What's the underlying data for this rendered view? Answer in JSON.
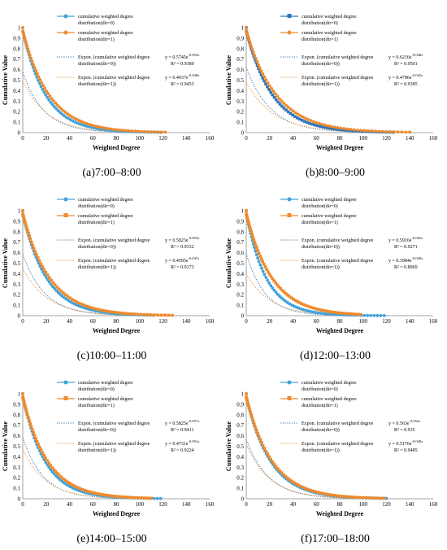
{
  "chart_data": [
    {
      "type": "line",
      "caption": "(a)7:00–8:00",
      "xlabel": "Weighted Degree",
      "ylabel": "Cumulative Value",
      "xlim": [
        0,
        160
      ],
      "ylim": [
        0,
        1
      ],
      "xticks": [
        "0",
        "20",
        "40",
        "60",
        "80",
        "100",
        "120",
        "140",
        "160"
      ],
      "yticks": [
        "0",
        "0.1",
        "0.2",
        "0.3",
        "0.4",
        "0.5",
        "0.6",
        "0.7",
        "0.8",
        "0.9",
        "1"
      ],
      "series": [
        {
          "name": "cumulative weighted degree distribution(dir=0)",
          "marker": "circle",
          "color": "#41A3D9",
          "k": 0.055,
          "xmax": 118
        },
        {
          "name": "cumulative weighted degree distribution(dir=1)",
          "marker": "circle",
          "color": "#F08A2C",
          "k": 0.048,
          "xmax": 122
        }
      ],
      "fits": [
        {
          "name": "Expon. (cumulative weighted degree distribution(dir=0))",
          "a": "0.5745",
          "exp": "-0.055x",
          "r2": "R² = 0.9389",
          "color": "#2E75B6",
          "eq_prefix": "y = ",
          "eq_base": "e"
        },
        {
          "name": "Expon. (cumulative weighted degree distribution(dir=1))",
          "a": "0.4937",
          "exp": "-0.048x",
          "r2": "R² = 0.9453",
          "color": "#F08A2C",
          "eq_prefix": "y = ",
          "eq_base": "e"
        }
      ]
    },
    {
      "type": "line",
      "caption": "(b)8:00–9:00",
      "xlabel": "Weighted Degree",
      "ylabel": "Cumulative Value",
      "xlim": [
        0,
        160
      ],
      "ylim": [
        0,
        1
      ],
      "xticks": [
        "0",
        "20",
        "40",
        "60",
        "80",
        "100",
        "120",
        "140",
        "160"
      ],
      "yticks": [
        "0",
        "0.1",
        "0.2",
        "0.3",
        "0.4",
        "0.5",
        "0.6",
        "0.7",
        "0.8",
        "0.9",
        "1"
      ],
      "series": [
        {
          "name": "cumulative weighted degree distribution(dir=0)",
          "marker": "square",
          "color": "#2E75B6",
          "k": 0.048,
          "xmax": 126
        },
        {
          "name": "cumulative weighted degree distribution(dir=1)",
          "marker": "circle",
          "color": "#F08A2C",
          "k": 0.042,
          "xmax": 140
        }
      ],
      "fits": [
        {
          "name": "Expon. (cumulative weighted degree distribution(dir=0))",
          "a": "0.6216",
          "exp": "-0.048x",
          "r2": "R² = 0.9501",
          "color": "#2E75B6",
          "eq_prefix": "y = ",
          "eq_base": "e"
        },
        {
          "name": "Expon. (cumulative weighted degree distribution(dir=1))",
          "a": "0.4786",
          "exp": "-0.042x",
          "r2": "R² = 0.9385",
          "color": "#F08A2C",
          "eq_prefix": "y = ",
          "eq_base": "e"
        }
      ]
    },
    {
      "type": "line",
      "caption": "(c)10:00–11:00",
      "xlabel": "Weighted Degree",
      "ylabel": "Cumulative Value",
      "xlim": [
        0,
        160
      ],
      "ylim": [
        0,
        1
      ],
      "xticks": [
        "0",
        "20",
        "40",
        "60",
        "80",
        "100",
        "120",
        "140",
        "160"
      ],
      "yticks": [
        "0",
        "0.1",
        "0.2",
        "0.3",
        "0.4",
        "0.5",
        "0.6",
        "0.7",
        "0.8",
        "0.9",
        "1"
      ],
      "series": [
        {
          "name": "cumulative weighted degree distribution(dir=0)",
          "marker": "circle",
          "color": "#41A3D9",
          "k": 0.053,
          "xmax": 112
        },
        {
          "name": "cumulative weighted degree distribution(dir=1)",
          "marker": "square",
          "color": "#F08A2C",
          "k": 0.047,
          "xmax": 128
        }
      ],
      "fits": [
        {
          "name": "Expon. (cumulative weighted degree distribution(dir=0))",
          "a": "0.5823",
          "exp": "-0.053x",
          "r2": "R² = 0.9332",
          "color": "#2E75B6",
          "eq_prefix": "y = ",
          "eq_base": "e"
        },
        {
          "name": "Expon. (cumulative weighted degree distribution(dir=1))",
          "a": "0.4505",
          "exp": "-0.047x",
          "r2": "R² = 0.9173",
          "color": "#F08A2C",
          "eq_prefix": "y = ",
          "eq_base": "e"
        }
      ]
    },
    {
      "type": "line",
      "caption": "(d)12:00–13:00",
      "xlabel": "Weighted Degree",
      "ylabel": "Cumulative Value",
      "xlim": [
        0,
        160
      ],
      "ylim": [
        0,
        1
      ],
      "xticks": [
        "0",
        "20",
        "40",
        "60",
        "80",
        "100",
        "120",
        "140",
        "160"
      ],
      "yticks": [
        "0",
        "0.1",
        "0.2",
        "0.3",
        "0.4",
        "0.5",
        "0.6",
        "0.7",
        "0.8",
        "0.9",
        "1"
      ],
      "series": [
        {
          "name": "cumulative weighted degree distribution(dir=0)",
          "marker": "circle",
          "color": "#41A3D9",
          "k": 0.063,
          "xmax": 118
        },
        {
          "name": "cumulative weighted degree distribution(dir=1)",
          "marker": "square",
          "color": "#F08A2C",
          "k": 0.049,
          "xmax": 98
        }
      ],
      "fits": [
        {
          "name": "Expon. (cumulative weighted degree distribution(dir=0))",
          "a": "0.5916",
          "exp": "-0.063x",
          "r2": "R² = 0.9271",
          "color": "#2E75B6",
          "eq_prefix": "y = ",
          "eq_base": "e"
        },
        {
          "name": "Expon. (cumulative weighted degree distribution(dir=1))",
          "a": "0.3984",
          "exp": "-0.049x",
          "r2": "R² = 0.8969",
          "color": "#F08A2C",
          "eq_prefix": "y = ",
          "eq_base": "e"
        }
      ]
    },
    {
      "type": "line",
      "caption": "(e)14:00–15:00",
      "xlabel": "Weighted Degree",
      "ylabel": "Cumulative Value",
      "xlim": [
        0,
        160
      ],
      "ylim": [
        0,
        1
      ],
      "xticks": [
        "0",
        "20",
        "40",
        "60",
        "80",
        "100",
        "120",
        "140",
        "160"
      ],
      "yticks": [
        "0",
        "0.1",
        "0.2",
        "0.3",
        "0.4",
        "0.5",
        "0.6",
        "0.7",
        "0.8",
        "0.9",
        "1"
      ],
      "series": [
        {
          "name": "cumulative weighted degree distribution(dir=0)",
          "marker": "circle",
          "color": "#41A3D9",
          "k": 0.057,
          "xmax": 118
        },
        {
          "name": "cumulative weighted degree distribution(dir=1)",
          "marker": "square",
          "color": "#F08A2C",
          "k": 0.051,
          "xmax": 110
        }
      ],
      "fits": [
        {
          "name": "Expon. (cumulative weighted degree distribution(dir=0))",
          "a": "0.5825",
          "exp": "-0.057x",
          "r2": "R² = 0.9411",
          "color": "#2E75B6",
          "eq_prefix": "y = ",
          "eq_base": "e"
        },
        {
          "name": "Expon. (cumulative weighted degree distribution(dir=1))",
          "a": "0.4731",
          "exp": "-0.051x",
          "r2": "R² = 0.9224",
          "color": "#F08A2C",
          "eq_prefix": "y = ",
          "eq_base": "e"
        }
      ]
    },
    {
      "type": "line",
      "caption": "(f)17:00–18:00",
      "xlabel": "Weighted Degree",
      "ylabel": "Cumulative Value",
      "xlim": [
        0,
        160
      ],
      "ylim": [
        0,
        1
      ],
      "xticks": [
        "0",
        "20",
        "40",
        "60",
        "80",
        "100",
        "120",
        "140",
        "160"
      ],
      "yticks": [
        "0",
        "0.1",
        "0.2",
        "0.3",
        "0.4",
        "0.5",
        "0.6",
        "0.7",
        "0.8",
        "0.9",
        "1"
      ],
      "series": [
        {
          "name": "cumulative weighted degree distribution(dir=0)",
          "marker": "circle",
          "color": "#41A3D9",
          "k": 0.052,
          "xmax": 120
        },
        {
          "name": "cumulative weighted degree distribution(dir=1)",
          "marker": "square",
          "color": "#F08A2C",
          "k": 0.049,
          "xmax": 118
        }
      ],
      "fits": [
        {
          "name": "Expon. (cumulative weighted degree distribution(dir=0))",
          "a": "0.563",
          "exp": "-0.052x",
          "r2": "R² = 0.935",
          "color": "#2E75B6",
          "eq_prefix": "y = ",
          "eq_base": "e"
        },
        {
          "name": "Expon. (cumulative weighted degree distribution(dir=1))",
          "a": "0.5176",
          "exp": "-0.049x",
          "r2": "R² = 0.9485",
          "color": "#F08A2C",
          "eq_prefix": "y = ",
          "eq_base": "e"
        }
      ]
    }
  ]
}
